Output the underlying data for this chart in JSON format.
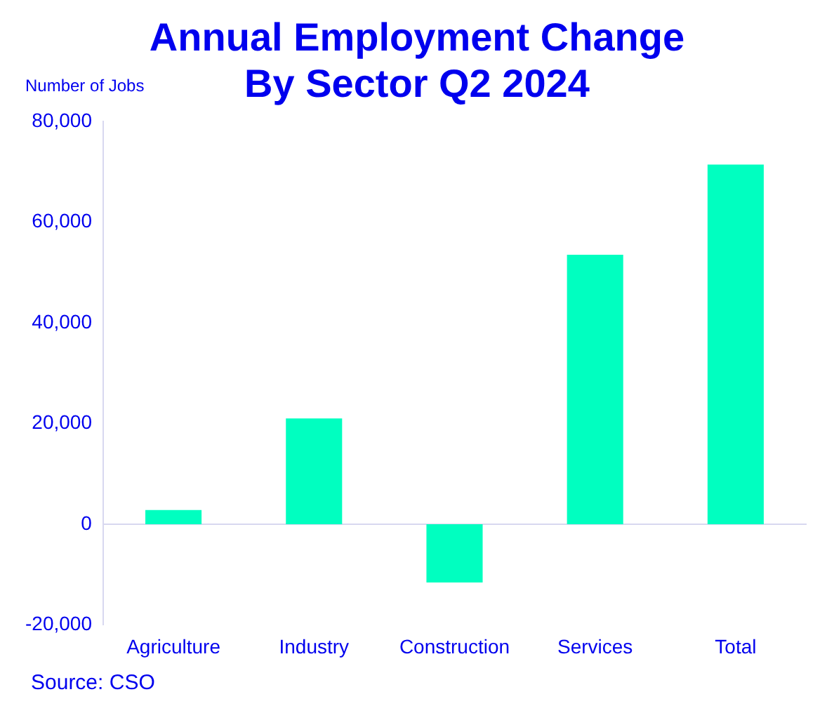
{
  "chart_data": {
    "type": "bar",
    "title": "Annual Employment Change\nBy Sector Q2 2024",
    "ylabel": "Number of Jobs",
    "categories": [
      "Agriculture",
      "Industry",
      "Construction",
      "Services",
      "Total"
    ],
    "values": [
      2800,
      21000,
      -11600,
      53500,
      71400
    ],
    "color": "#00ffc0",
    "ylim": [
      -20000,
      80000
    ],
    "yticks": [
      {
        "value": -20000,
        "label": "-20,000"
      },
      0,
      {
        "value": 20000,
        "label": "20,000"
      },
      {
        "value": 40000,
        "label": "40,000"
      },
      {
        "value": 60000,
        "label": "60,000"
      },
      {
        "value": 80000,
        "label": "80,000"
      }
    ],
    "annotations": [
      "Source: CSO"
    ]
  }
}
